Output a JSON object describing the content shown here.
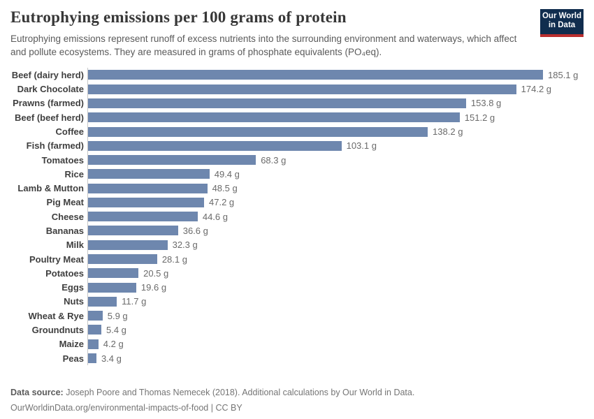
{
  "header": {
    "title": "Eutrophying emissions per 100 grams of protein",
    "subtitle": "Eutrophying emissions represent runoff of excess nutrients into the surrounding environment and waterways, which affect and pollute ecosystems. They are measured in grams of phosphate equivalents (PO₄eq).",
    "logo_line1": "Our World",
    "logo_line2": "in Data"
  },
  "chart_data": {
    "type": "bar",
    "orientation": "horizontal",
    "title": "Eutrophying emissions per 100 grams of protein",
    "unit": "g",
    "categories": [
      "Beef (dairy herd)",
      "Dark Chocolate",
      "Prawns (farmed)",
      "Beef (beef herd)",
      "Coffee",
      "Fish (farmed)",
      "Tomatoes",
      "Rice",
      "Lamb & Mutton",
      "Pig Meat",
      "Cheese",
      "Bananas",
      "Milk",
      "Poultry Meat",
      "Potatoes",
      "Eggs",
      "Nuts",
      "Wheat & Rye",
      "Groundnuts",
      "Maize",
      "Peas"
    ],
    "values": [
      185.1,
      174.2,
      153.8,
      151.2,
      138.2,
      103.1,
      68.3,
      49.4,
      48.5,
      47.2,
      44.6,
      36.6,
      32.3,
      28.1,
      20.5,
      19.6,
      11.7,
      5.9,
      5.4,
      4.2,
      3.4
    ],
    "value_labels": [
      "185.1 g",
      "174.2 g",
      "153.8 g",
      "151.2 g",
      "138.2 g",
      "103.1 g",
      "68.3 g",
      "49.4 g",
      "48.5 g",
      "47.2 g",
      "44.6 g",
      "36.6 g",
      "32.3 g",
      "28.1 g",
      "20.5 g",
      "19.6 g",
      "11.7 g",
      "5.9 g",
      "5.4 g",
      "4.2 g",
      "3.4 g"
    ],
    "xlim": [
      0,
      185.1
    ],
    "grid": false,
    "legend": false,
    "xlabel": "",
    "ylabel": ""
  },
  "colors": {
    "bar": "#6e87ae",
    "axis_line": "#c8c8c8",
    "title_text": "#373737",
    "subtitle_text": "#5a5a5a",
    "category_text": "#3f3f3f",
    "value_text": "#6a6a6a",
    "footer_text": "#757575",
    "logo_background": "#102d4e",
    "logo_stripe": "#bb2f2f"
  },
  "footer": {
    "source_label": "Data source:",
    "source_text": "Joseph Poore and Thomas Nemecek (2018). Additional calculations by Our World in Data.",
    "url": "OurWorldinData.org/environmental-impacts-of-food",
    "separator": "|",
    "license": "CC BY"
  }
}
